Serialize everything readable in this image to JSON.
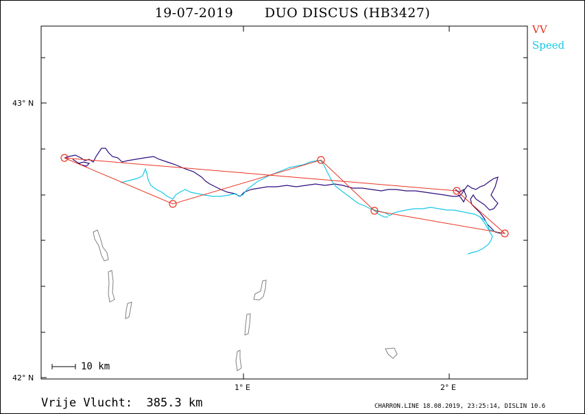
{
  "header": {
    "title": "19-07-2019       DUO DISCUS (HB3427)"
  },
  "legend": {
    "items": [
      {
        "label": "VV",
        "color": "#e8321e"
      },
      {
        "label": "Speed",
        "color": "#16c8e6"
      }
    ]
  },
  "axes": {
    "lat_labels": [
      "43° N",
      "42° N"
    ],
    "lon_labels": [
      "1° E",
      "2° E"
    ]
  },
  "scale": {
    "label": "10 km"
  },
  "footer": {
    "distance": "Vrije Vlucht:  385.3 km",
    "credits": "CHARRON.LINE 18.08.2019, 23:25:14, DISLIN 10.6"
  },
  "colors": {
    "task_line": "#e8321e",
    "track_fast": "#16c8e6",
    "track_slow": "#2a0a7a",
    "coastline": "#808080"
  }
}
